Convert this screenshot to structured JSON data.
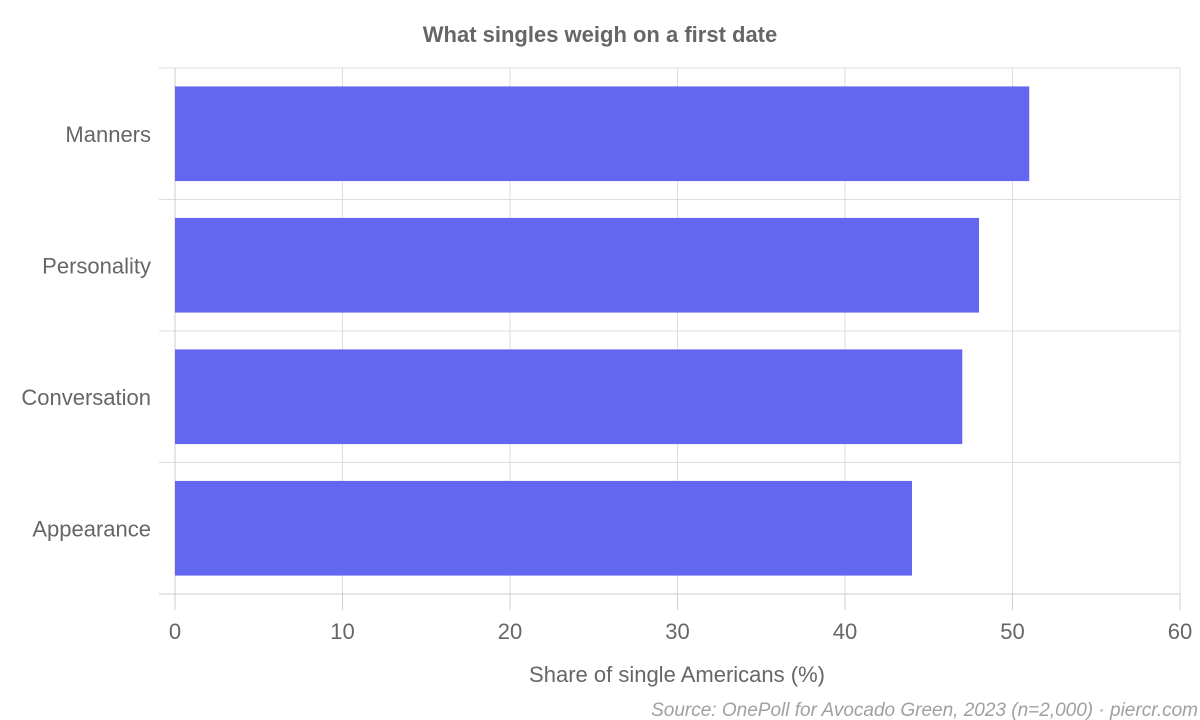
{
  "chart_data": {
    "type": "bar",
    "orientation": "horizontal",
    "title": "What singles weigh on a first date",
    "categories": [
      "Manners",
      "Personality",
      "Conversation",
      "Appearance"
    ],
    "values": [
      51,
      48,
      47,
      44
    ],
    "xlabel": "Share of single Americans (%)",
    "ylabel": "",
    "xlim": [
      0,
      60
    ],
    "xticks": [
      "0",
      "10",
      "20",
      "30",
      "40",
      "50",
      "60"
    ],
    "grid": true,
    "bar_color": "#6366f1"
  },
  "source": "Source: OnePoll for Avocado Green, 2023 (n=2,000) · piercr.com"
}
